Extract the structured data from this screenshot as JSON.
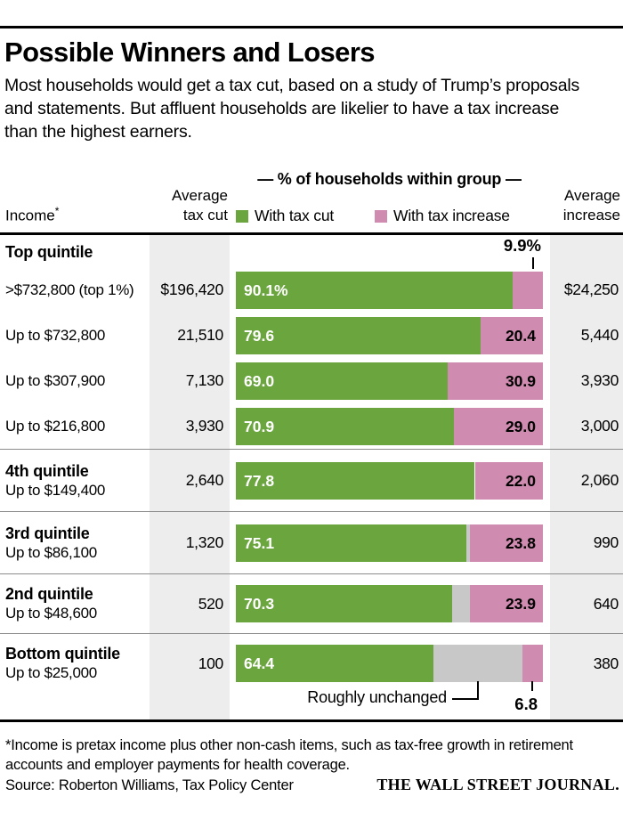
{
  "page": {
    "title": "Possible Winners and Losers",
    "subtitle": "Most households would get a tax cut, based on a study of Trump’s proposals and statements. But affluent households are likelier to have a tax increase than the highest earners.",
    "footnote": "*Income is pretax income plus other non-cash items, such as tax-free growth in retirement accounts and employer payments for health coverage.",
    "source": "Source: Roberton Williams, Tax Policy Center",
    "brand": "THE WALL STREET JOURNAL."
  },
  "header": {
    "income_label": "Income",
    "income_asterisk": "*",
    "avg_cut_line1": "Average",
    "avg_cut_line2": "tax cut",
    "group_title": "— % of households within group —",
    "legend_cut": "With tax cut",
    "legend_increase": "With tax increase",
    "avg_inc_line1": "Average",
    "avg_inc_line2": "increase"
  },
  "colors": {
    "tax_cut_green": "#6ba53e",
    "tax_increase_pink": "#d08cb0",
    "unchanged_gray": "#c8c8c8",
    "column_shade": "#ededed"
  },
  "chart_data": {
    "type": "bar",
    "orientation": "horizontal-stacked",
    "xlim": [
      0,
      100
    ],
    "unit": "% of households within group",
    "legend_position": "top",
    "annotations": {
      "top_increase_label": "9.9%",
      "unchanged_label": "Roughly unchanged",
      "bottom_increase_label": "6.8"
    },
    "rows": [
      {
        "section": "Top quintile",
        "label": ">$732,800 (top 1%)",
        "avg_cut": "$196,420",
        "cut_pct": 90.1,
        "cut_label": "90.1%",
        "unchanged_pct": 0,
        "inc_pct": 9.9,
        "inc_label": "9.9%",
        "avg_increase": "$24,250"
      },
      {
        "label": "Up to $732,800",
        "avg_cut": "21,510",
        "cut_pct": 79.6,
        "cut_label": "79.6",
        "unchanged_pct": 0,
        "inc_pct": 20.4,
        "inc_label": "20.4",
        "avg_increase": "5,440"
      },
      {
        "label": "Up to $307,900",
        "avg_cut": "7,130",
        "cut_pct": 69.0,
        "cut_label": "69.0",
        "unchanged_pct": 0,
        "inc_pct": 30.9,
        "inc_label": "30.9",
        "avg_increase": "3,930"
      },
      {
        "label": "Up to $216,800",
        "avg_cut": "3,930",
        "cut_pct": 70.9,
        "cut_label": "70.9",
        "unchanged_pct": 0,
        "inc_pct": 29.0,
        "inc_label": "29.0",
        "avg_increase": "3,000"
      },
      {
        "section": "4th quintile",
        "label": "Up to $149,400",
        "avg_cut": "2,640",
        "cut_pct": 77.8,
        "cut_label": "77.8",
        "unchanged_pct": 0,
        "inc_pct": 22.0,
        "inc_label": "22.0",
        "avg_increase": "2,060"
      },
      {
        "section": "3rd quintile",
        "label": "Up to $86,100",
        "avg_cut": "1,320",
        "cut_pct": 75.1,
        "cut_label": "75.1",
        "unchanged_pct": 1.1,
        "inc_pct": 23.8,
        "inc_label": "23.8",
        "avg_increase": "990"
      },
      {
        "section": "2nd quintile",
        "label": "Up to $48,600",
        "avg_cut": "520",
        "cut_pct": 70.3,
        "cut_label": "70.3",
        "unchanged_pct": 5.8,
        "inc_pct": 23.9,
        "inc_label": "23.9",
        "avg_increase": "640"
      },
      {
        "section": "Bottom quintile",
        "label": "Up to $25,000",
        "avg_cut": "100",
        "cut_pct": 64.4,
        "cut_label": "64.4",
        "unchanged_pct": 28.8,
        "inc_pct": 6.8,
        "inc_label": "6.8",
        "avg_increase": "380"
      }
    ]
  }
}
